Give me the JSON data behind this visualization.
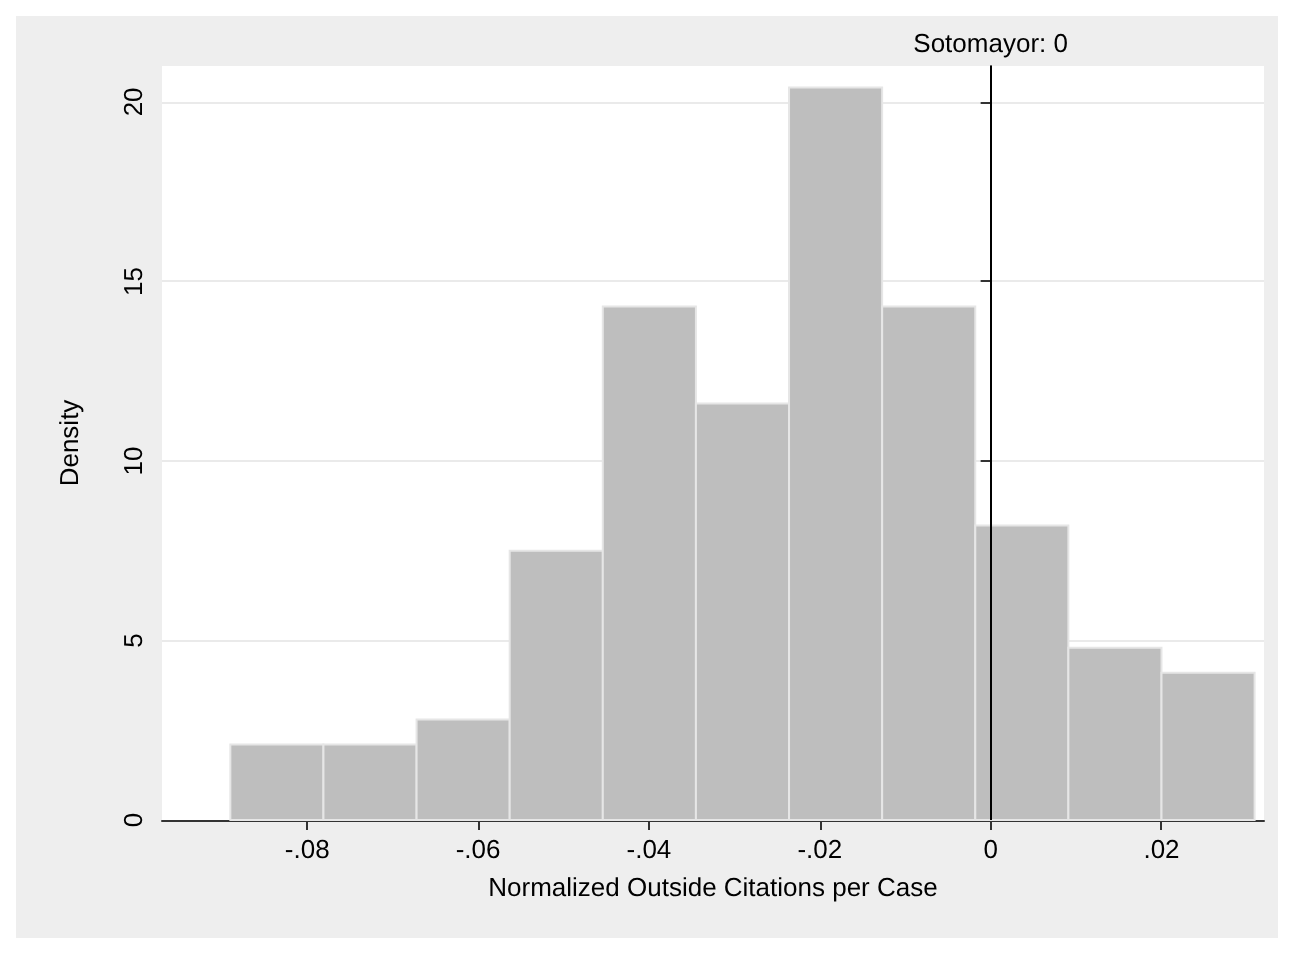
{
  "chart_data": {
    "type": "histogram",
    "xlabel": "Normalized Outside Citations per Case",
    "ylabel": "Density",
    "bins": [
      -0.089,
      -0.0781,
      -0.0672,
      -0.0563,
      -0.0454,
      -0.0345,
      -0.0236,
      -0.0127,
      -0.0018,
      0.0091,
      0.02,
      0.0309
    ],
    "values": [
      2.1,
      2.1,
      2.8,
      7.5,
      14.3,
      11.6,
      20.4,
      14.3,
      8.2,
      4.8,
      4.1
    ],
    "color": "#bebebe",
    "xlim": [
      -0.097,
      0.032
    ],
    "xticks": [
      {
        "value": -0.08,
        "label": "-.08"
      },
      {
        "value": -0.06,
        "label": "-.06"
      },
      {
        "value": -0.04,
        "label": "-.04"
      },
      {
        "value": -0.02,
        "label": "-.02"
      },
      0,
      {
        "value": 0.02,
        "label": ".02"
      }
    ],
    "ylim": [
      0,
      21
    ],
    "yticks": [
      0,
      5,
      10,
      15,
      20
    ],
    "grid": "y",
    "ref_lines": [
      {
        "axis": "x",
        "value": 0,
        "label": "Sotomayor: 0",
        "color": "#000000"
      }
    ]
  }
}
